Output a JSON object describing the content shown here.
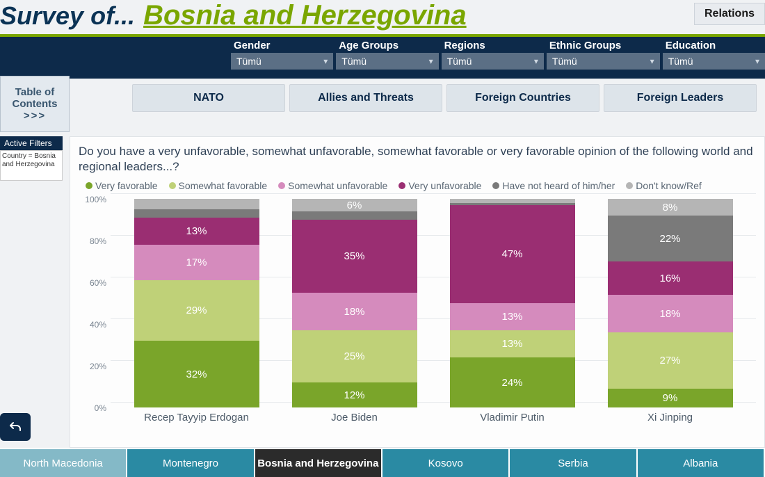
{
  "header": {
    "prefix": "Survey of...",
    "country": "Bosnia and Herzegovina",
    "relations_btn": "Relations"
  },
  "filters": [
    {
      "label": "Gender",
      "value": "Tümü"
    },
    {
      "label": "Age Groups",
      "value": "Tümü"
    },
    {
      "label": "Regions",
      "value": "Tümü"
    },
    {
      "label": "Ethnic Groups",
      "value": "Tümü"
    },
    {
      "label": "Education",
      "value": "Tümü"
    }
  ],
  "toc": {
    "title": "Table of Contents",
    "arrows": ">>>"
  },
  "tabs": [
    "NATO",
    "Allies and Threats",
    "Foreign Countries",
    "Foreign Leaders"
  ],
  "active_tab_index": 3,
  "active_filters": {
    "header": "Active Filters",
    "text": "Country = Bosnia and Herzegovina"
  },
  "chart": {
    "type": "stacked-bar-100",
    "question": "Do you have a very unfavorable, somewhat unfavorable, somewhat favorable or very favorable opinion of the following world and regional leaders...?",
    "legend": [
      {
        "label": "Very favorable",
        "color": "#7aa52a"
      },
      {
        "label": "Somewhat favorable",
        "color": "#bfd178"
      },
      {
        "label": "Somewhat unfavorable",
        "color": "#d58bbd"
      },
      {
        "label": "Very unfavorable",
        "color": "#9a2e72"
      },
      {
        "label": "Have not heard of him/her",
        "color": "#7a7a7a"
      },
      {
        "label": "Don't know/Ref",
        "color": "#b5b5b5"
      }
    ],
    "y_ticks": [
      0,
      20,
      40,
      60,
      80,
      100
    ],
    "label_min_pct": 6,
    "x_label_fontsize": 15,
    "val_label_fontsize": 15,
    "val_label_color": "#ffffff",
    "grid_color": "#e6e9ec",
    "background": "#fdfdfd",
    "leaders": [
      {
        "name": "Recep Tayyip Erdogan",
        "values": {
          "very_fav": 32,
          "some_fav": 29,
          "some_unfav": 17,
          "very_unfav": 13,
          "not_heard": 4,
          "dk": 5
        }
      },
      {
        "name": "Joe Biden",
        "values": {
          "very_fav": 12,
          "some_fav": 25,
          "some_unfav": 18,
          "very_unfav": 35,
          "not_heard": 4,
          "dk": 6
        }
      },
      {
        "name": "Vladimir Putin",
        "values": {
          "very_fav": 24,
          "some_fav": 13,
          "some_unfav": 13,
          "very_unfav": 47,
          "not_heard": 1,
          "dk": 2
        }
      },
      {
        "name": "Xi Jinping",
        "values": {
          "very_fav": 9,
          "some_fav": 27,
          "some_unfav": 18,
          "very_unfav": 16,
          "not_heard": 22,
          "dk": 8
        }
      }
    ],
    "series_order": [
      "very_fav",
      "some_fav",
      "some_unfav",
      "very_unfav",
      "not_heard",
      "dk"
    ],
    "series_colors": {
      "very_fav": "#7aa52a",
      "some_fav": "#bfd178",
      "some_unfav": "#d58bbd",
      "very_unfav": "#9a2e72",
      "not_heard": "#7a7a7a",
      "dk": "#b5b5b5"
    }
  },
  "country_strip": [
    {
      "label": "North Macedonia",
      "style": "pale"
    },
    {
      "label": "Montenegro",
      "style": "teal"
    },
    {
      "label": "Bosnia and Herzegovina",
      "style": "dark"
    },
    {
      "label": "Kosovo",
      "style": "teal"
    },
    {
      "label": "Serbia",
      "style": "teal"
    },
    {
      "label": "Albania",
      "style": "teal"
    }
  ]
}
